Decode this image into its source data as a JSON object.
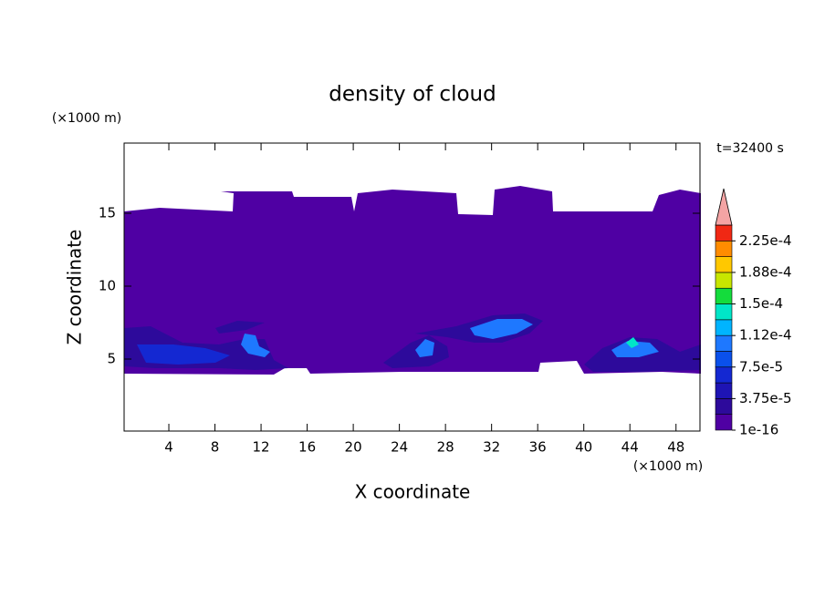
{
  "chart_data": {
    "type": "contour",
    "title": "density of cloud",
    "x_label": "X coordinate",
    "y_label": "Z coordinate",
    "x_unit": "(×1000 m)",
    "y_unit": "(×1000 m)",
    "annotation": "t=32400 s",
    "xlim": [
      0,
      50
    ],
    "xticks": [
      4,
      8,
      12,
      16,
      20,
      24,
      28,
      32,
      36,
      40,
      44,
      48
    ],
    "ylim": [
      0,
      20
    ],
    "yticks": [
      5,
      10,
      15
    ],
    "colorbar": {
      "levels": [
        1e-16,
        1.875e-05,
        3.75e-05,
        5.625e-05,
        7.5e-05,
        9.375e-05,
        0.0001125,
        0.00013125,
        0.00015,
        0.00016875,
        0.0001875,
        0.00020625,
        0.000225,
        0.00024375
      ],
      "colors": [
        "#4f00a3",
        "#2d0a9b",
        "#1e14b4",
        "#1428d2",
        "#0a50eb",
        "#1e78ff",
        "#00b4ff",
        "#00e6c8",
        "#14dc3c",
        "#c8e600",
        "#ffc800",
        "#ff8c00",
        "#f02814"
      ],
      "extend_color": "#f4a4a4",
      "ticks": [
        1e-16,
        {
          "value": 3.75e-05,
          "label": "3.75e-5"
        },
        {
          "value": 7.5e-05,
          "label": "7.5e-5"
        },
        {
          "value": 0.0001125,
          "label": "1.12e-4"
        },
        {
          "value": 0.00015,
          "label": "1.5e-4"
        },
        {
          "value": 0.0001875,
          "label": "1.88e-4"
        },
        {
          "value": 0.000225,
          "label": "2.25e-4"
        }
      ]
    }
  }
}
